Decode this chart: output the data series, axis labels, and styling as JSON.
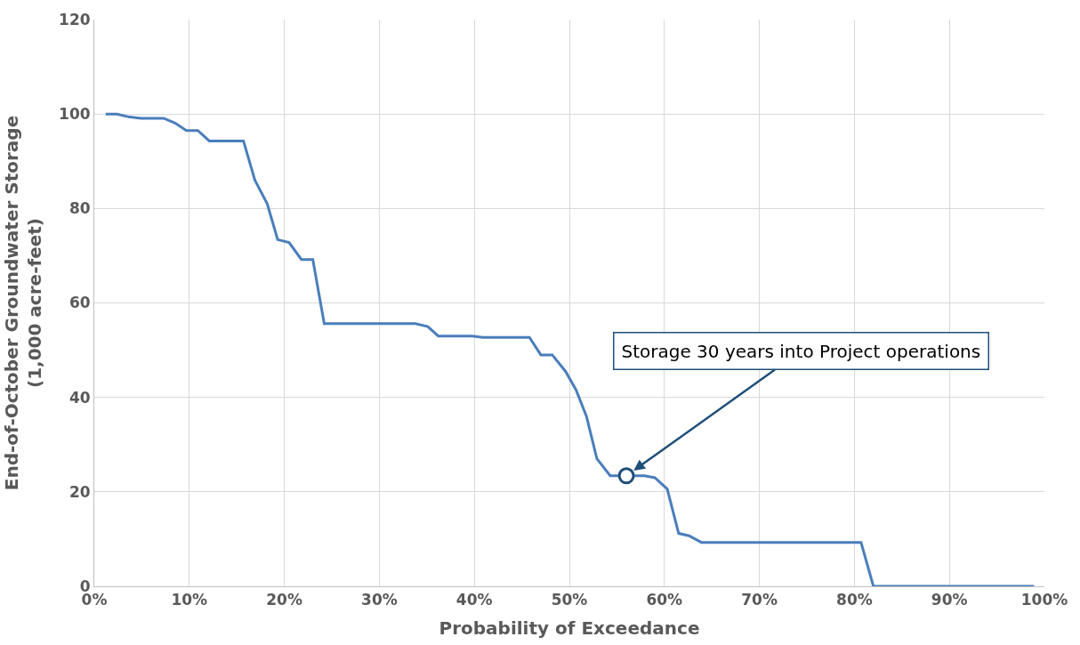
{
  "chart_data": {
    "type": "line",
    "xlabel": "Probability of Exceedance",
    "ylabel": "End-of-October Groundwater Storage\n(1,000 acre-feet)",
    "x": [
      1.2,
      2.4,
      3.6,
      4.9,
      7.3,
      8.5,
      9.7,
      10.9,
      12.1,
      15.7,
      16.9,
      18.2,
      19.3,
      20.5,
      21.8,
      23.0,
      24.2,
      33.8,
      35.1,
      36.2,
      39.8,
      40.9,
      45.8,
      47.0,
      48.2,
      49.6,
      50.7,
      51.8,
      52.9,
      54.3,
      57.9,
      59.0,
      60.3,
      61.5,
      62.6,
      63.9,
      80.7,
      82.0,
      98.9
    ],
    "series": [
      {
        "color": "#4a7ebb",
        "values": [
          100,
          100,
          99.4,
          99.1,
          99.1,
          98.1,
          96.5,
          96.5,
          94.3,
          94.3,
          86,
          81,
          73.4,
          72.8,
          69.2,
          69.2,
          55.6,
          55.6,
          55,
          53,
          53,
          52.7,
          52.7,
          49,
          49,
          45.5,
          41.6,
          36,
          27,
          23.4,
          23.4,
          23,
          20.6,
          11.2,
          10.7,
          9.3,
          9.3,
          0,
          0
        ]
      }
    ],
    "annotations": [
      {
        "text": "Storage 30 years into Project operations",
        "x": 56.0,
        "y": 23.4
      }
    ],
    "xlim": [
      0,
      100
    ],
    "xticks": [
      {
        "value": 0,
        "label": "0%"
      },
      {
        "value": 10,
        "label": "10%"
      },
      {
        "value": 20,
        "label": "20%"
      },
      {
        "value": 30,
        "label": "30%"
      },
      {
        "value": 40,
        "label": "40%"
      },
      {
        "value": 50,
        "label": "50%"
      },
      {
        "value": 60,
        "label": "60%"
      },
      {
        "value": 70,
        "label": "70%"
      },
      {
        "value": 80,
        "label": "80%"
      },
      {
        "value": 90,
        "label": "90%"
      },
      {
        "value": 100,
        "label": "100%"
      }
    ],
    "ylim": [
      0,
      120
    ],
    "yticks": [
      0,
      20,
      40,
      60,
      80,
      100,
      120
    ],
    "grid": true,
    "marker": "none",
    "line_style": "solid"
  }
}
